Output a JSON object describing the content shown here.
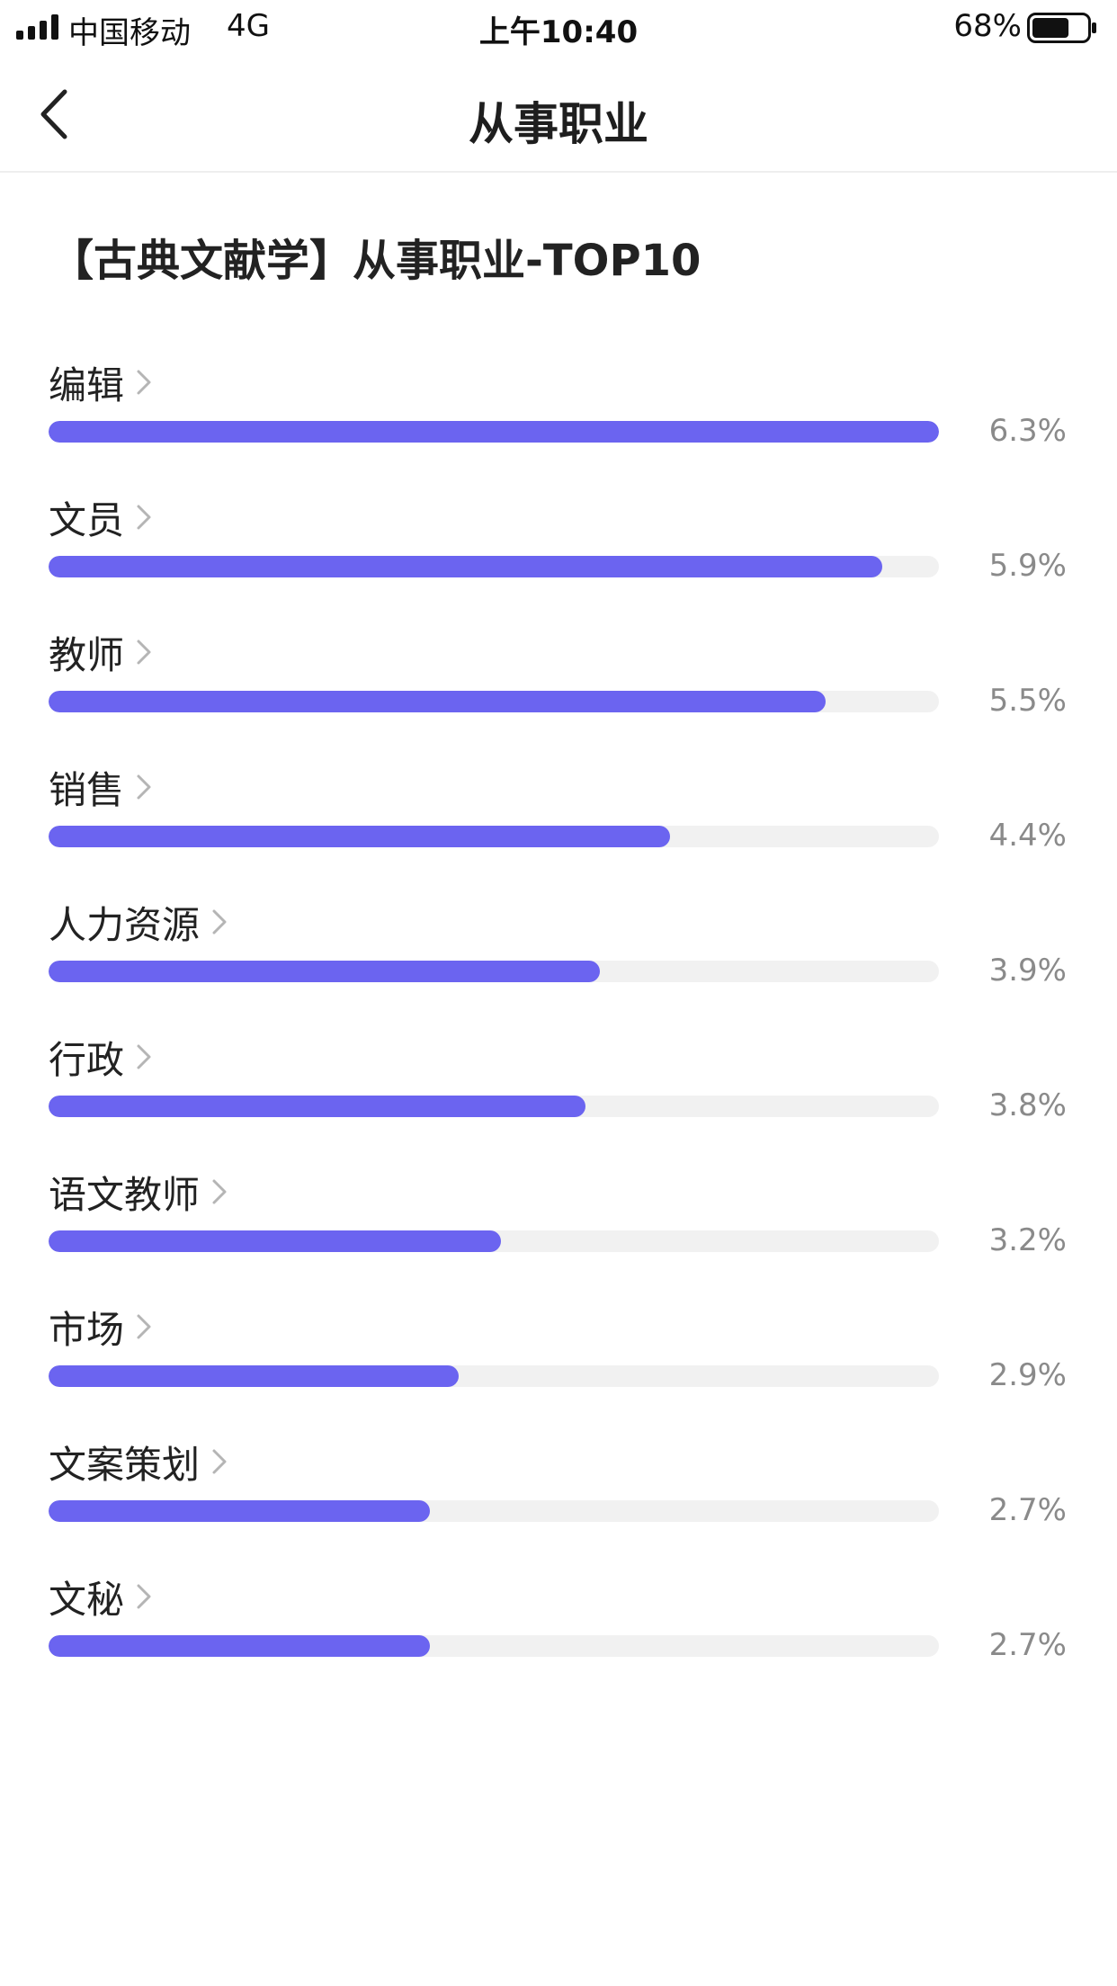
{
  "status_bar": {
    "carrier": "中国移动",
    "network": "4G",
    "time": "上午10:40",
    "battery_percent": "68%",
    "battery_level": 0.68,
    "signal_icon": "signal-bars-icon",
    "battery_icon": "battery-icon"
  },
  "nav": {
    "back_icon": "chevron-left-icon",
    "title": "从事职业"
  },
  "section": {
    "title": "【古典文献学】从事职业-TOP10"
  },
  "colors": {
    "bar_fill": "#6b64f0",
    "bar_track": "#f1f1f1",
    "value_text": "#8a8a8a"
  },
  "jobs": [
    {
      "label": "编辑",
      "value": "6.3%",
      "percent": 6.3
    },
    {
      "label": "文员",
      "value": "5.9%",
      "percent": 5.9
    },
    {
      "label": "教师",
      "value": "5.5%",
      "percent": 5.5
    },
    {
      "label": "销售",
      "value": "4.4%",
      "percent": 4.4
    },
    {
      "label": "人力资源",
      "value": "3.9%",
      "percent": 3.9
    },
    {
      "label": "行政",
      "value": "3.8%",
      "percent": 3.8
    },
    {
      "label": "语文教师",
      "value": "3.2%",
      "percent": 3.2
    },
    {
      "label": "市场",
      "value": "2.9%",
      "percent": 2.9
    },
    {
      "label": "文案策划",
      "value": "2.7%",
      "percent": 2.7
    },
    {
      "label": "文秘",
      "value": "2.7%",
      "percent": 2.7
    }
  ],
  "chart_data": {
    "type": "bar",
    "categories": [
      "编辑",
      "文员",
      "教师",
      "销售",
      "人力资源",
      "行政",
      "语文教师",
      "市场",
      "文案策划",
      "文秘"
    ],
    "values": [
      6.3,
      5.9,
      5.5,
      4.4,
      3.9,
      3.8,
      3.2,
      2.9,
      2.7,
      2.7
    ],
    "title": "【古典文献学】从事职业-TOP10",
    "xlabel": "",
    "ylabel": "",
    "unit": "%"
  }
}
